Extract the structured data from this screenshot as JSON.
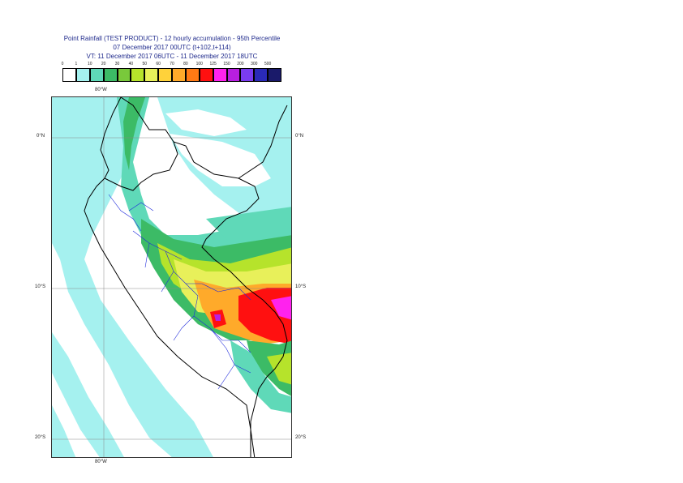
{
  "title": {
    "line1": "Point Rainfall (TEST PRODUCT) - 12 hourly accumulation - 95th Percentile",
    "line2": "07 December 2017 00UTC (t+102,t+114)",
    "line3": "VT: 11 December 2017 06UTC - 11 December 2017 18UTC"
  },
  "legend": {
    "labels": [
      "0",
      "1",
      "10",
      "20",
      "30",
      "40",
      "50",
      "60",
      "70",
      "80",
      "100",
      "125",
      "150",
      "200",
      "300",
      "500"
    ],
    "colors": [
      "#ffffff",
      "#a5f1ef",
      "#5fd9b8",
      "#3cbb66",
      "#79c93b",
      "#b6e32b",
      "#e8f05a",
      "#ffd23a",
      "#ffaa2a",
      "#ff7a14",
      "#ff1010",
      "#ff22ee",
      "#b81fe0",
      "#7a3cf0",
      "#2a2ab8",
      "#1a1a6a"
    ]
  },
  "axes": {
    "lon_top": "80°W",
    "lon_bottom": "80°W",
    "lat_left": [
      "0°N",
      "10°S",
      "20°S"
    ],
    "lat_right": [
      "0°N",
      "10°S",
      "20°S"
    ]
  },
  "map_colors": {
    "sea": "#9ff0f0",
    "light": "#a5f1ef",
    "teal": "#5fd9b8",
    "green": "#3cbb66",
    "lime": "#b6e32b",
    "yellow": "#e8f05a",
    "orange": "#ffaa2a",
    "red": "#ff1010",
    "magenta": "#ff22ee",
    "border_country": "#000000",
    "border_region": "#1f2adb"
  }
}
